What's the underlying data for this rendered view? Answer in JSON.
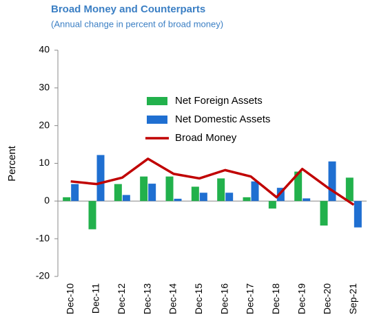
{
  "chart_data": {
    "type": "bar_line",
    "title": "Broad Money and Counterparts",
    "subtitle": "(Annual change in percent of broad money)",
    "ylabel": "Percent",
    "categories": [
      "Dec-10",
      "Dec-11",
      "Dec-12",
      "Dec-13",
      "Dec-14",
      "Dec-15",
      "Dec-16",
      "Dec-17",
      "Dec-18",
      "Dec-19",
      "Dec-20",
      "Sep-21"
    ],
    "series": [
      {
        "name": "Net Foreign Assets",
        "type": "bar",
        "color": "#22b14c",
        "values": [
          1,
          -7.5,
          4.5,
          6.5,
          6.5,
          3.8,
          6,
          1,
          -2,
          7.8,
          -6.5,
          6.2
        ]
      },
      {
        "name": "Net Domestic Assets",
        "type": "bar",
        "color": "#1f6fd1",
        "values": [
          4.5,
          12.2,
          1.6,
          4.6,
          0.6,
          2.2,
          2.2,
          5.2,
          3.5,
          0.7,
          10.5,
          -7
        ]
      },
      {
        "name": "Broad Money",
        "type": "line",
        "color": "#c00000",
        "values": [
          5.2,
          4.5,
          6.2,
          11.2,
          7.2,
          6,
          8.2,
          6.5,
          1,
          8.5,
          3.5,
          -1
        ]
      }
    ],
    "ylim": [
      -20,
      40
    ],
    "yticks": [
      -20,
      -10,
      0,
      10,
      20,
      30,
      40
    ],
    "grid": false
  }
}
